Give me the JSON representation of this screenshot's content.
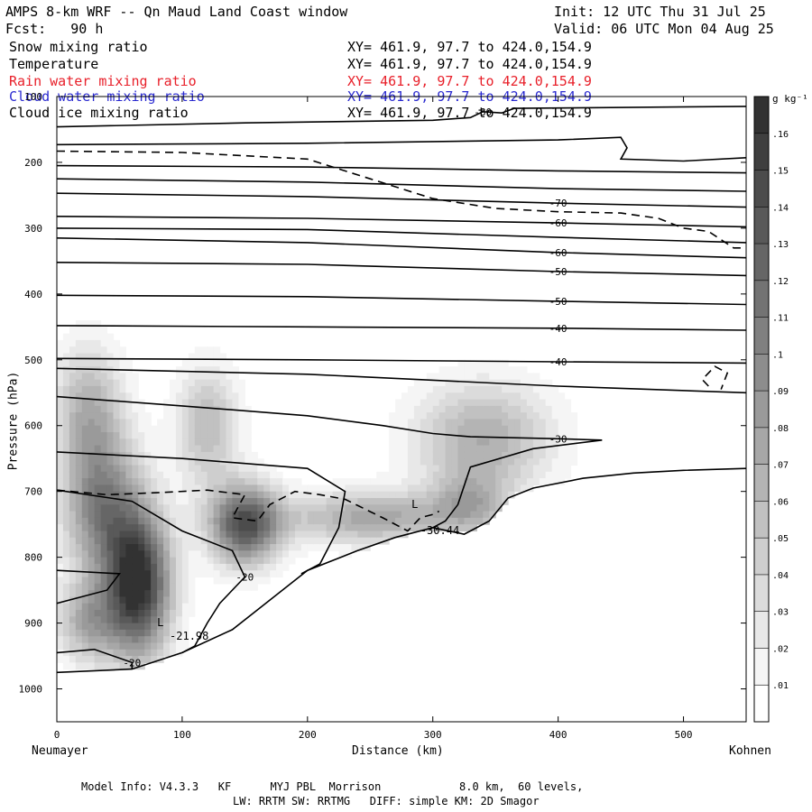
{
  "header": {
    "title": "AMPS 8-km WRF -- Qn Maud Land Coast window",
    "init": "Init: 12 UTC Thu 31 Jul 25",
    "fcst": "Fcst:   90 h",
    "valid": "Valid: 06 UTC Mon 04 Aug 25"
  },
  "fields": [
    {
      "name": "Snow mixing ratio",
      "xy": "XY= 461.9, 97.7 to 424.0,154.9",
      "color": "#000000"
    },
    {
      "name": "Temperature",
      "xy": "XY= 461.9, 97.7 to 424.0,154.9",
      "color": "#000000"
    },
    {
      "name": "Rain water mixing ratio",
      "xy": "XY= 461.9, 97.7 to 424.0,154.9",
      "color": "#e8202a"
    },
    {
      "name": "Cloud water mixing ratio",
      "xy": "XY= 461.9, 97.7 to 424.0,154.9",
      "color": "#2a2ad0"
    },
    {
      "name": "Cloud ice mixing ratio",
      "xy": "XY= 461.9, 97.7 to 424.0,154.9",
      "color": "#000000"
    }
  ],
  "footer": {
    "line1": "Model Info: V4.3.3   KF      MYJ PBL  Morrison            8.0 km,  60 levels,",
    "line2": "LW: RRTM SW: RRTMG   DIFF: simple KM: 2D Smagor"
  },
  "chart_data": {
    "type": "heatmap",
    "xlabel": "Distance (km)",
    "ylabel": "Pressure (hPa)",
    "x_end_labels": {
      "left": "Neumayer",
      "right": "Kohnen"
    },
    "xlim": [
      0,
      550
    ],
    "ylim": [
      1050,
      100
    ],
    "x_ticks": [
      0,
      100,
      200,
      300,
      400,
      500
    ],
    "y_ticks": [
      100,
      200,
      300,
      400,
      500,
      600,
      700,
      800,
      900,
      1000
    ],
    "colorbar": {
      "unit": "g kg⁻¹",
      "levels": [
        0.01,
        0.02,
        0.03,
        0.04,
        0.05,
        0.06,
        0.07,
        0.08,
        0.09,
        0.1,
        0.11,
        0.12,
        0.13,
        0.14,
        0.15,
        0.16
      ],
      "max": 0.17
    },
    "snow_blobs": [
      {
        "x": 65,
        "p": 840,
        "sx": 26,
        "sp": 110,
        "amp": 0.17
      },
      {
        "x": 150,
        "p": 750,
        "sx": 28,
        "sp": 60,
        "amp": 0.14
      },
      {
        "x": 35,
        "p": 720,
        "sx": 30,
        "sp": 110,
        "amp": 0.1
      },
      {
        "x": 25,
        "p": 570,
        "sx": 28,
        "sp": 95,
        "amp": 0.06
      },
      {
        "x": 120,
        "p": 600,
        "sx": 25,
        "sp": 90,
        "amp": 0.06
      },
      {
        "x": 250,
        "p": 740,
        "sx": 70,
        "sp": 40,
        "amp": 0.075
      },
      {
        "x": 340,
        "p": 620,
        "sx": 55,
        "sp": 85,
        "amp": 0.07
      },
      {
        "x": 330,
        "p": 720,
        "sx": 30,
        "sp": 45,
        "amp": 0.055
      },
      {
        "x": 25,
        "p": 900,
        "sx": 25,
        "sp": 60,
        "amp": 0.07
      }
    ],
    "terrain": [
      [
        0,
        975
      ],
      [
        60,
        970
      ],
      [
        100,
        945
      ],
      [
        140,
        910
      ],
      [
        160,
        880
      ],
      [
        200,
        820
      ],
      [
        240,
        790
      ],
      [
        270,
        770
      ],
      [
        300,
        755
      ],
      [
        325,
        765
      ],
      [
        345,
        745
      ],
      [
        360,
        710
      ],
      [
        380,
        695
      ],
      [
        420,
        680
      ],
      [
        460,
        672
      ],
      [
        500,
        668
      ],
      [
        550,
        665
      ]
    ],
    "isotherms": [
      {
        "label": "-80",
        "pts": [
          [
            0,
            146
          ],
          [
            150,
            140
          ],
          [
            300,
            136
          ],
          [
            330,
            132
          ],
          [
            340,
            123
          ],
          [
            355,
            125
          ],
          [
            365,
            118
          ],
          [
            550,
            115
          ]
        ]
      },
      {
        "label": "",
        "pts": [
          [
            0,
            173
          ],
          [
            200,
            171
          ],
          [
            400,
            166
          ],
          [
            450,
            162
          ],
          [
            455,
            178
          ],
          [
            450,
            195
          ],
          [
            500,
            198
          ],
          [
            550,
            193
          ]
        ]
      },
      {
        "label": "",
        "pts": [
          [
            0,
            205
          ],
          [
            200,
            207
          ],
          [
            400,
            213
          ],
          [
            550,
            216
          ]
        ]
      },
      {
        "label": "",
        "pts": [
          [
            0,
            225
          ],
          [
            200,
            230
          ],
          [
            400,
            240
          ],
          [
            550,
            244
          ]
        ]
      },
      {
        "label": "-70",
        "pts": [
          [
            0,
            247
          ],
          [
            200,
            252
          ],
          [
            400,
            262
          ],
          [
            550,
            268
          ]
        ]
      },
      {
        "label": "-60",
        "pts": [
          [
            0,
            282
          ],
          [
            200,
            285
          ],
          [
            400,
            292
          ],
          [
            550,
            298
          ]
        ]
      },
      {
        "label": "",
        "pts": [
          [
            0,
            300
          ],
          [
            200,
            302
          ],
          [
            400,
            314
          ],
          [
            550,
            322
          ]
        ]
      },
      {
        "label": "-60",
        "pts": [
          [
            0,
            315
          ],
          [
            200,
            322
          ],
          [
            400,
            337
          ],
          [
            550,
            345
          ]
        ]
      },
      {
        "label": "-50",
        "pts": [
          [
            0,
            352
          ],
          [
            200,
            355
          ],
          [
            400,
            366
          ],
          [
            550,
            372
          ]
        ]
      },
      {
        "label": "-50",
        "pts": [
          [
            0,
            402
          ],
          [
            200,
            404
          ],
          [
            400,
            411
          ],
          [
            550,
            416
          ]
        ]
      },
      {
        "label": "-40",
        "pts": [
          [
            0,
            448
          ],
          [
            200,
            450
          ],
          [
            400,
            452
          ],
          [
            550,
            455
          ]
        ]
      },
      {
        "label": "-40",
        "pts": [
          [
            0,
            498
          ],
          [
            200,
            500
          ],
          [
            400,
            503
          ],
          [
            550,
            505
          ]
        ]
      },
      {
        "label": "",
        "pts": [
          [
            0,
            513
          ],
          [
            200,
            522
          ],
          [
            400,
            540
          ],
          [
            550,
            550
          ]
        ]
      },
      {
        "label": "-30",
        "pts": [
          [
            0,
            556
          ],
          [
            100,
            570
          ],
          [
            200,
            585
          ],
          [
            260,
            600
          ],
          [
            300,
            612
          ],
          [
            330,
            617
          ],
          [
            400,
            620
          ],
          [
            435,
            622
          ],
          [
            380,
            635
          ],
          [
            330,
            663
          ],
          [
            320,
            720
          ],
          [
            310,
            745
          ],
          [
            300,
            755
          ]
        ]
      },
      {
        "label": "",
        "pts": [
          [
            0,
            640
          ],
          [
            100,
            650
          ],
          [
            200,
            665
          ],
          [
            230,
            700
          ],
          [
            225,
            755
          ],
          [
            210,
            810
          ],
          [
            195,
            825
          ]
        ]
      },
      {
        "label": "-20",
        "pts": [
          [
            0,
            698
          ],
          [
            60,
            715
          ],
          [
            100,
            760
          ],
          [
            140,
            790
          ],
          [
            150,
            830
          ],
          [
            130,
            870
          ],
          [
            120,
            900
          ],
          [
            110,
            935
          ],
          [
            100,
            945
          ]
        ]
      },
      {
        "label": "",
        "pts": [
          [
            0,
            820
          ],
          [
            50,
            825
          ],
          [
            40,
            850
          ],
          [
            0,
            870
          ]
        ]
      },
      {
        "label": "-20",
        "pts": [
          [
            0,
            945
          ],
          [
            30,
            940
          ],
          [
            60,
            960
          ],
          [
            60,
            970
          ]
        ]
      }
    ],
    "cloud_ice_dashed": [
      {
        "label": "",
        "pts": [
          [
            0,
            183
          ],
          [
            100,
            185
          ],
          [
            200,
            195
          ],
          [
            250,
            225
          ],
          [
            300,
            255
          ],
          [
            350,
            270
          ],
          [
            400,
            275
          ],
          [
            450,
            277
          ],
          [
            480,
            285
          ],
          [
            500,
            300
          ],
          [
            520,
            305
          ],
          [
            540,
            330
          ],
          [
            550,
            330
          ]
        ]
      },
      {
        "label": "",
        "pts": [
          [
            0,
            698
          ],
          [
            40,
            705
          ],
          [
            80,
            702
          ],
          [
            120,
            698
          ],
          [
            150,
            705
          ],
          [
            140,
            740
          ],
          [
            160,
            745
          ],
          [
            170,
            720
          ],
          [
            190,
            700
          ],
          [
            210,
            705
          ],
          [
            230,
            712
          ],
          [
            260,
            740
          ],
          [
            280,
            760
          ],
          [
            290,
            740
          ],
          [
            300,
            735
          ],
          [
            305,
            730
          ]
        ]
      },
      {
        "label": "",
        "pts": [
          [
            520,
            540
          ],
          [
            515,
            530
          ],
          [
            525,
            510
          ],
          [
            535,
            520
          ],
          [
            530,
            545
          ]
        ]
      }
    ],
    "annotations": [
      {
        "text": "L",
        "x": 80,
        "p": 905
      },
      {
        "text": "-21.98",
        "x": 90,
        "p": 925
      },
      {
        "text": "L",
        "x": 283,
        "p": 725
      },
      {
        "text": "-30.44",
        "x": 290,
        "p": 765
      }
    ]
  }
}
